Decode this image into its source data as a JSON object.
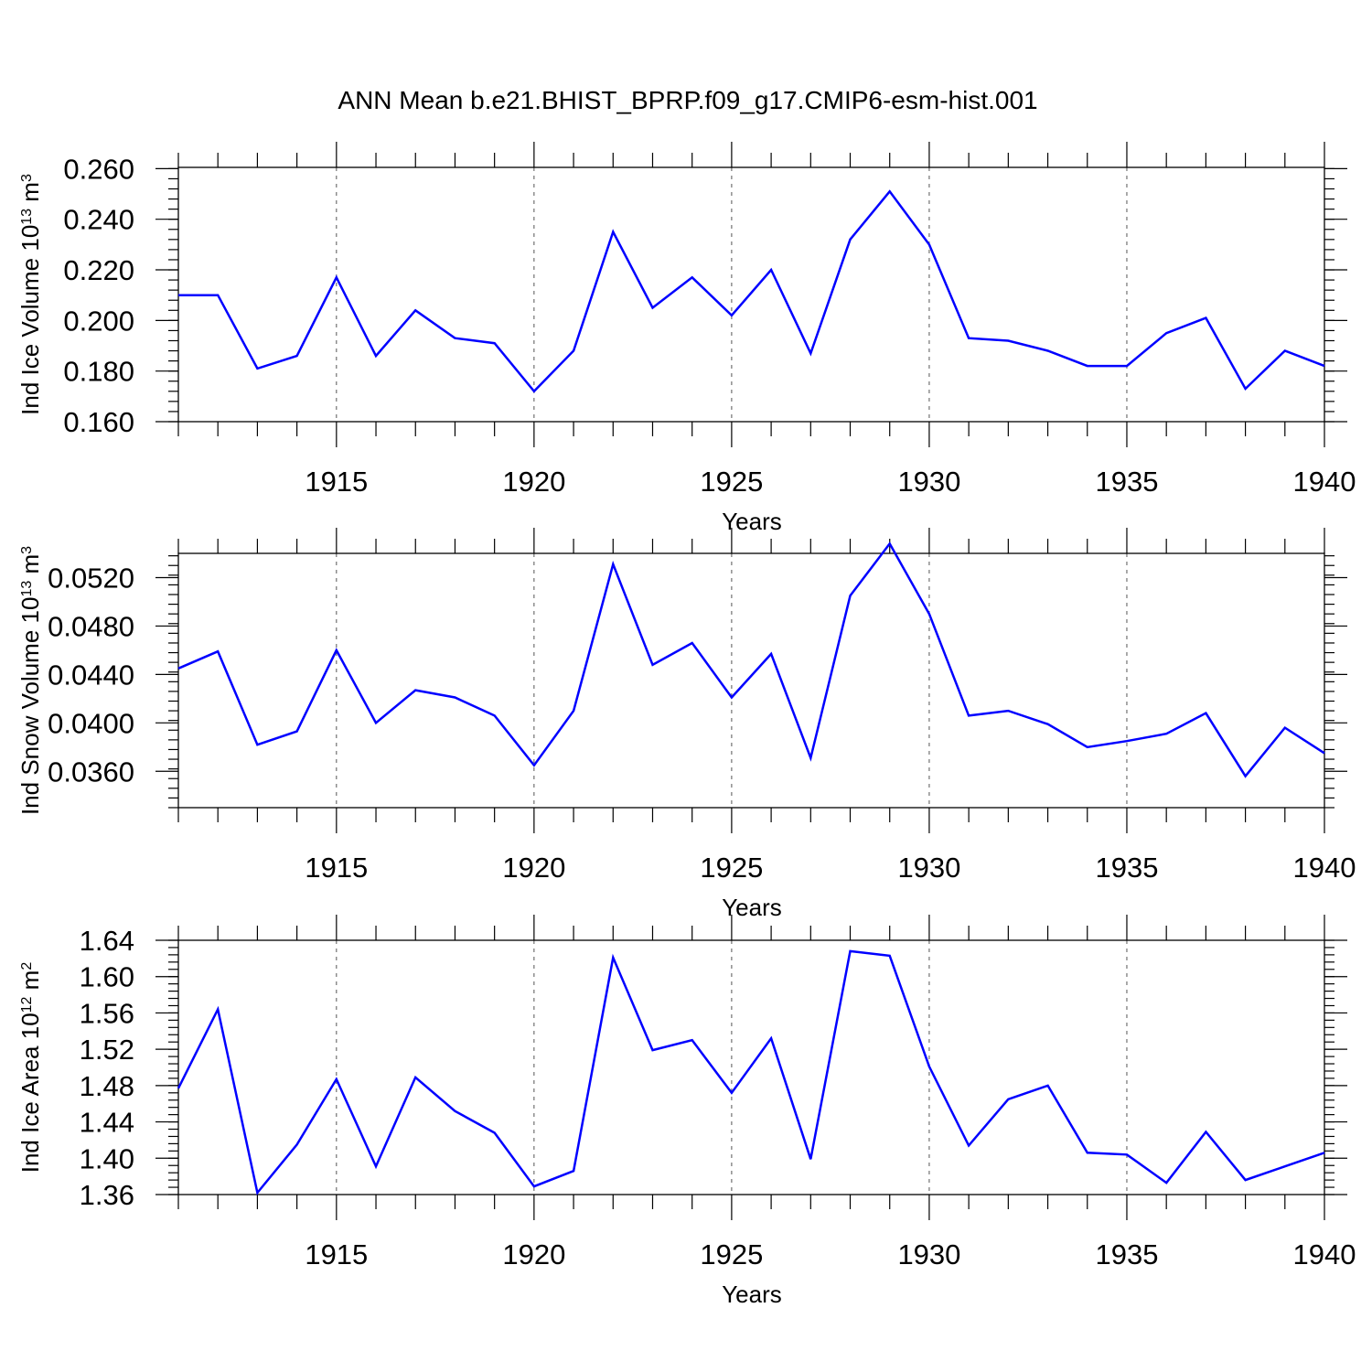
{
  "title": "ANN Mean b.e21.BHIST_BPRP.f09_g17.CMIP6-esm-hist.001",
  "colors": {
    "series": "#0000ff",
    "axis": "#000000",
    "grid": "#555555"
  },
  "chart_data": [
    {
      "type": "line",
      "xlabel": "Years",
      "ylabel": {
        "prefix": "Ind Ice Volume 10",
        "exponent": "13",
        "unit": " m",
        "unit_exponent": "3"
      },
      "xlim": [
        1911,
        1940
      ],
      "ylim": [
        0.16,
        0.2605
      ],
      "x_ticks": [
        1915,
        1920,
        1925,
        1930,
        1935,
        1940
      ],
      "y_ticks": [
        0.16,
        0.18,
        0.2,
        0.22,
        0.24,
        0.26
      ],
      "y_tick_labels": [
        "0.160",
        "0.180",
        "0.200",
        "0.220",
        "0.240",
        "0.260"
      ],
      "y_minor_step": 0.004,
      "grid": "vertical dashed at major x ticks",
      "x": [
        1911,
        1912,
        1913,
        1914,
        1915,
        1916,
        1917,
        1918,
        1919,
        1920,
        1921,
        1922,
        1923,
        1924,
        1925,
        1926,
        1927,
        1928,
        1929,
        1930,
        1931,
        1932,
        1933,
        1934,
        1935,
        1936,
        1937,
        1938,
        1939,
        1940
      ],
      "values": [
        0.21,
        0.21,
        0.181,
        0.186,
        0.217,
        0.186,
        0.204,
        0.193,
        0.191,
        0.172,
        0.188,
        0.235,
        0.205,
        0.217,
        0.202,
        0.22,
        0.187,
        0.232,
        0.251,
        0.23,
        0.193,
        0.192,
        0.188,
        0.182,
        0.182,
        0.195,
        0.201,
        0.173,
        0.188,
        0.182
      ]
    },
    {
      "type": "line",
      "xlabel": "Years",
      "ylabel": {
        "prefix": "Ind Snow Volume 10",
        "exponent": "13",
        "unit": " m",
        "unit_exponent": "3"
      },
      "xlim": [
        1911,
        1940
      ],
      "ylim": [
        0.033,
        0.054
      ],
      "x_ticks": [
        1915,
        1920,
        1925,
        1930,
        1935,
        1940
      ],
      "y_ticks": [
        0.036,
        0.04,
        0.044,
        0.048,
        0.052
      ],
      "y_tick_labels": [
        "0.0360",
        "0.0400",
        "0.0440",
        "0.0480",
        "0.0520"
      ],
      "y_minor_step": 0.0008,
      "grid": "vertical dashed at major x ticks",
      "x": [
        1911,
        1912,
        1913,
        1914,
        1915,
        1916,
        1917,
        1918,
        1919,
        1920,
        1921,
        1922,
        1923,
        1924,
        1925,
        1926,
        1927,
        1928,
        1929,
        1930,
        1931,
        1932,
        1933,
        1934,
        1935,
        1936,
        1937,
        1938,
        1939,
        1940
      ],
      "values": [
        0.0445,
        0.0459,
        0.0382,
        0.0393,
        0.046,
        0.04,
        0.0427,
        0.0421,
        0.0406,
        0.0365,
        0.041,
        0.0531,
        0.0448,
        0.0466,
        0.0421,
        0.0457,
        0.0371,
        0.0505,
        0.0548,
        0.049,
        0.0406,
        0.041,
        0.0399,
        0.038,
        0.0385,
        0.0391,
        0.0408,
        0.0356,
        0.0396,
        0.0375
      ]
    },
    {
      "type": "line",
      "xlabel": "Years",
      "ylabel": {
        "prefix": "Ind Ice Area 10",
        "exponent": "12",
        "unit": " m",
        "unit_exponent": "2"
      },
      "xlim": [
        1911,
        1940
      ],
      "ylim": [
        1.36,
        1.64
      ],
      "x_ticks": [
        1915,
        1920,
        1925,
        1930,
        1935,
        1940
      ],
      "y_ticks": [
        1.36,
        1.4,
        1.44,
        1.48,
        1.52,
        1.56,
        1.6,
        1.64
      ],
      "y_tick_labels": [
        "1.36",
        "1.40",
        "1.44",
        "1.48",
        "1.52",
        "1.56",
        "1.60",
        "1.64"
      ],
      "y_minor_step": 0.008,
      "grid": "vertical dashed at major x ticks",
      "x": [
        1911,
        1912,
        1913,
        1914,
        1915,
        1916,
        1917,
        1918,
        1919,
        1920,
        1921,
        1922,
        1923,
        1924,
        1925,
        1926,
        1927,
        1928,
        1929,
        1930,
        1931,
        1932,
        1933,
        1934,
        1935,
        1936,
        1937,
        1938,
        1939,
        1940
      ],
      "values": [
        1.477,
        1.564,
        1.362,
        1.415,
        1.487,
        1.391,
        1.489,
        1.452,
        1.428,
        1.369,
        1.386,
        1.621,
        1.519,
        1.53,
        1.472,
        1.532,
        1.399,
        1.628,
        1.623,
        1.501,
        1.414,
        1.465,
        1.48,
        1.406,
        1.404,
        1.373,
        1.429,
        1.376,
        1.391,
        1.406
      ]
    }
  ]
}
